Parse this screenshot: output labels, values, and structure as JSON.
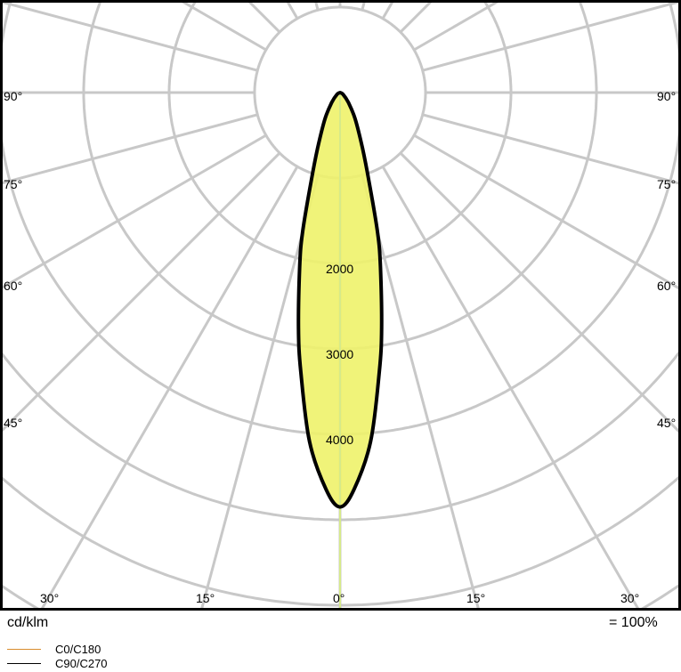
{
  "chart_data": {
    "type": "polar-line",
    "unit_label": "cd/klm",
    "scale_note": "= 100%",
    "ring_labels": [
      "2000",
      "3000",
      "4000"
    ],
    "ring_step": 1000,
    "angle_labels_left": [
      "90°",
      "75°",
      "60°",
      "45°"
    ],
    "angle_labels_right": [
      "90°",
      "75°",
      "60°",
      "45°"
    ],
    "angle_labels_bottom": [
      "30°",
      "15°",
      "0°",
      "15°",
      "30°"
    ],
    "grid": true,
    "fill_color": "#eef26a",
    "series": [
      {
        "name": "C0/C180",
        "color": "#d98c2e",
        "gamma": [
          0,
          2,
          5,
          8,
          10,
          13,
          15,
          18,
          22,
          30,
          40,
          60,
          90
        ],
        "intensity": [
          4850,
          4650,
          4100,
          3300,
          2800,
          2100,
          1700,
          1100,
          700,
          350,
          150,
          40,
          0
        ]
      },
      {
        "name": "C90/C270",
        "color": "#000000",
        "gamma": [
          0,
          2,
          5,
          8,
          10,
          13,
          15,
          18,
          22,
          30,
          40,
          60,
          90
        ],
        "intensity": [
          4850,
          4650,
          4100,
          3300,
          2800,
          2100,
          1700,
          1100,
          700,
          350,
          150,
          40,
          0
        ]
      }
    ]
  }
}
